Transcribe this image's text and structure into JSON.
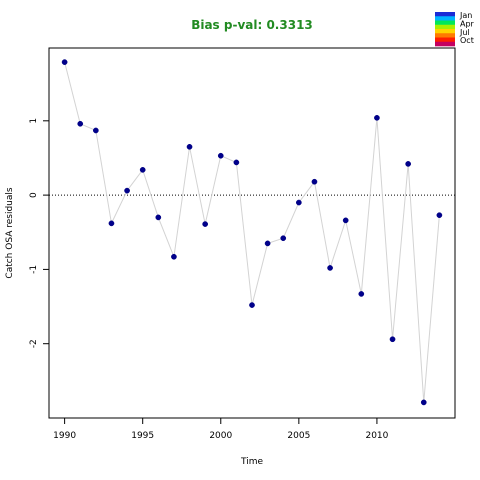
{
  "chart_data": {
    "type": "scatter",
    "title": "Bias p-val: 0.3313",
    "title_color": "#228b22",
    "xlabel": "Time",
    "ylabel": "Catch OSA residuals",
    "xlim": [
      1989.0,
      2015.0
    ],
    "ylim": [
      -3.0,
      1.98
    ],
    "xticks": [
      "1990",
      "1995",
      "2000",
      "2005",
      "2010"
    ],
    "yticks": [
      "-2",
      "-1",
      "0",
      "1"
    ],
    "reference_line": 0,
    "line_color": "#d3d3d3",
    "point_color": "#00008b",
    "legend": {
      "position": "top-right",
      "entries": [
        "Jan",
        "Apr",
        "Jul",
        "Oct"
      ],
      "colors": [
        "#1a2bd6",
        "#00b3ff",
        "#00e85a",
        "#a8f000",
        "#ffd400",
        "#ff7a00",
        "#ff1e00",
        "#c40060"
      ]
    },
    "x": [
      1990,
      1991,
      1992,
      1993,
      1994,
      1995,
      1996,
      1997,
      1998,
      1999,
      2000,
      2001,
      2002,
      2003,
      2004,
      2005,
      2006,
      2007,
      2008,
      2009,
      2010,
      2011,
      2012,
      2013,
      2014
    ],
    "y": [
      1.79,
      0.96,
      0.87,
      -0.38,
      0.06,
      0.34,
      -0.3,
      -0.83,
      0.65,
      -0.39,
      0.53,
      0.44,
      -1.48,
      -0.65,
      -0.58,
      -0.1,
      0.18,
      -0.98,
      -0.34,
      -1.33,
      1.04,
      -1.94,
      0.42,
      -2.79,
      -0.27
    ]
  }
}
